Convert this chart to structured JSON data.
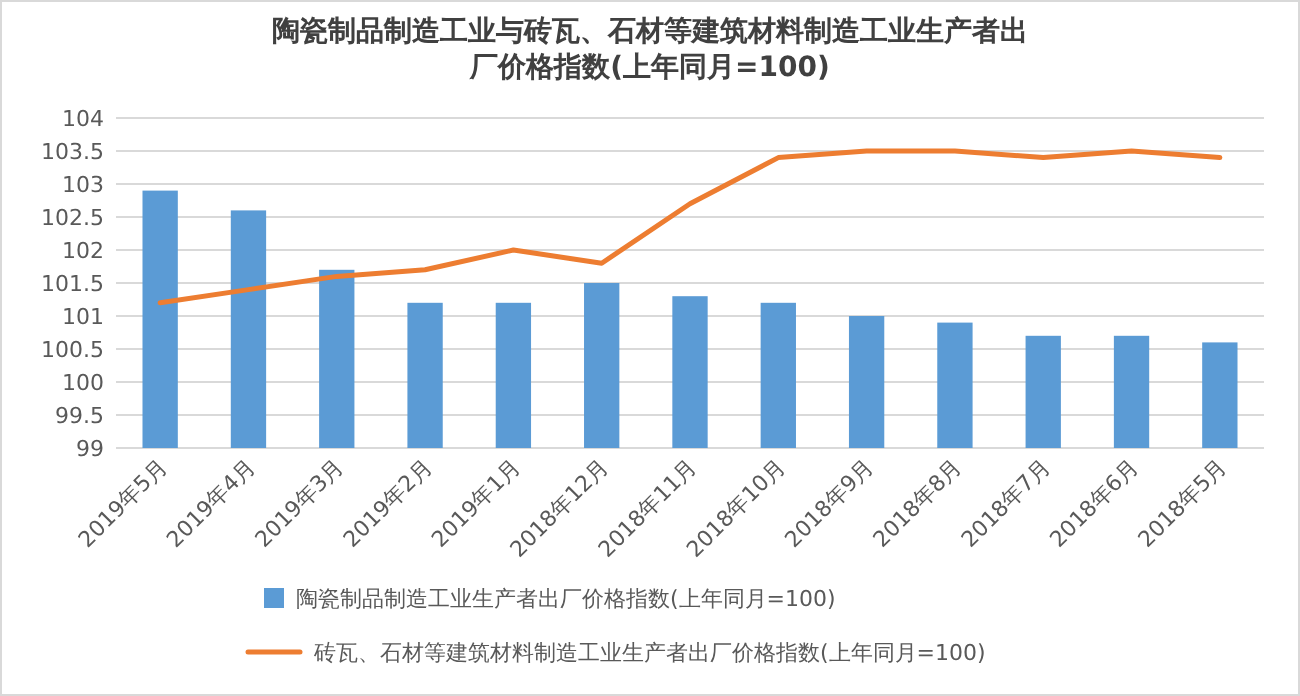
{
  "chart_data": {
    "type": "bar",
    "title": "陶瓷制品制造工业与砖瓦、石材等建筑材料制造工业生产者出厂价格指数(上年同月=100)",
    "categories": [
      "2019年5月",
      "2019年4月",
      "2019年3月",
      "2019年2月",
      "2019年1月",
      "2018年12月",
      "2018年11月",
      "2018年10月",
      "2018年9月",
      "2018年8月",
      "2018年7月",
      "2018年6月",
      "2018年5月"
    ],
    "series": [
      {
        "name": "陶瓷制品制造工业生产者出厂价格指数(上年同月=100)",
        "color": "#5b9bd5",
        "values": [
          102.9,
          102.6,
          101.7,
          101.2,
          101.2,
          101.5,
          101.3,
          101.2,
          101.0,
          100.9,
          100.7,
          100.7,
          100.6
        ]
      },
      {
        "name": "砖瓦、石材等建筑材料制造工业生产者出厂价格指数(上年同月=100)",
        "type": "line",
        "color": "#ed7d31",
        "values": [
          101.2,
          101.4,
          101.6,
          101.7,
          102.0,
          101.8,
          102.7,
          103.4,
          103.5,
          103.5,
          103.4,
          103.5,
          103.4
        ]
      }
    ],
    "ylim": [
      99,
      104
    ],
    "yticks": [
      99,
      99.5,
      100,
      100.5,
      101,
      101.5,
      102,
      102.5,
      103,
      103.5,
      104
    ],
    "grid": "y",
    "legend": "bottom"
  }
}
